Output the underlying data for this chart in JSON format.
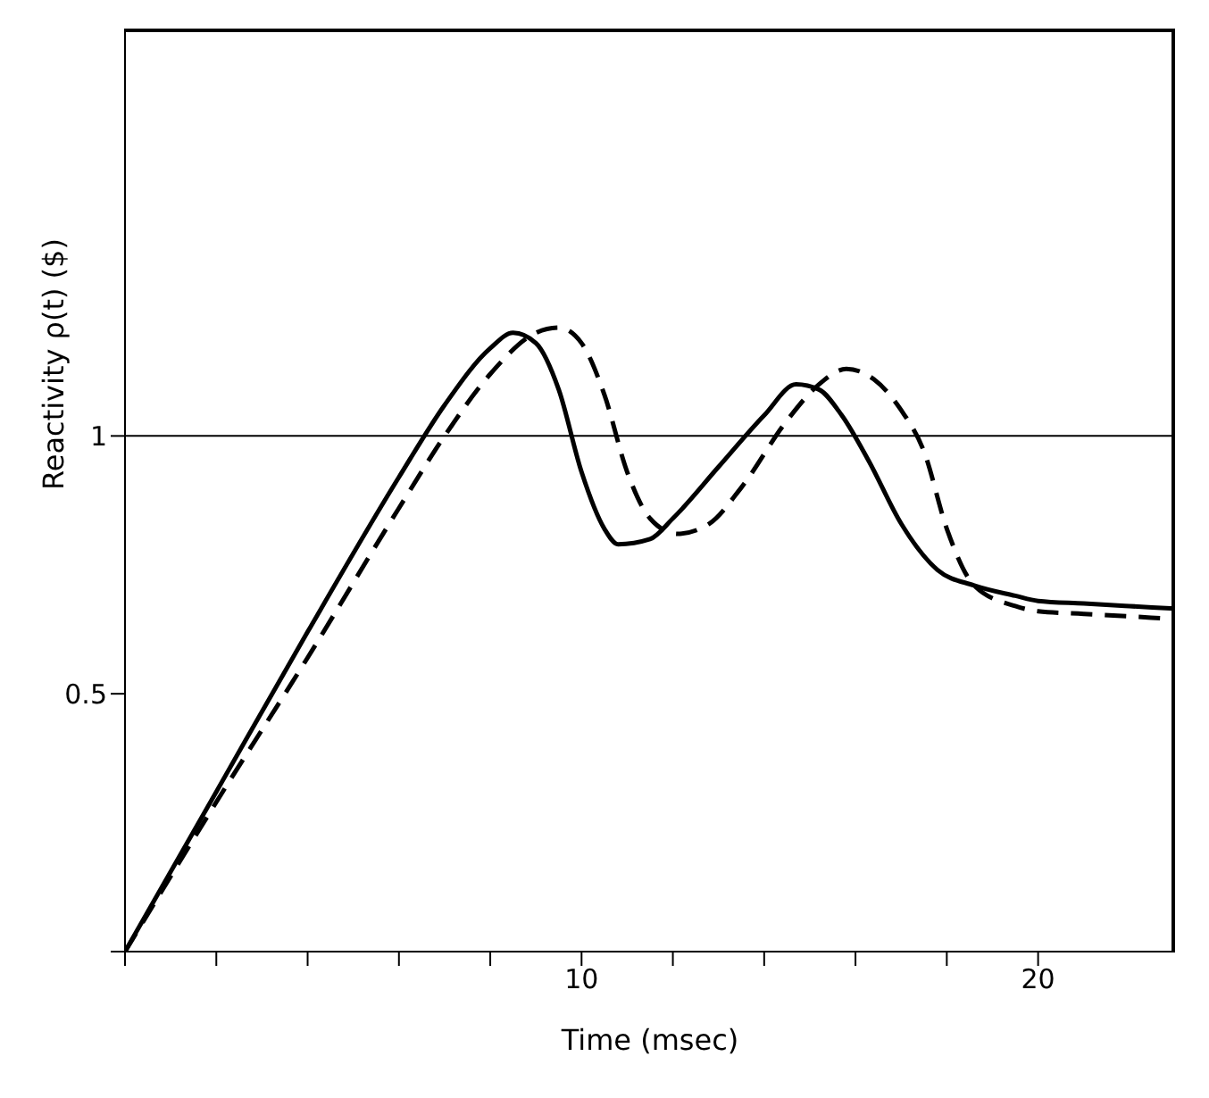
{
  "chart_data": {
    "type": "line",
    "xlabel": "Time    (msec)",
    "ylabel": "Reactivity ρ(t)  ($)",
    "xlim": [
      0,
      23
    ],
    "ylim": [
      0,
      1.79
    ],
    "xticks": [
      {
        "value": 0,
        "label": null
      },
      {
        "value": 2,
        "label": null
      },
      {
        "value": 4,
        "label": null
      },
      {
        "value": 6,
        "label": null
      },
      {
        "value": 8,
        "label": null
      },
      {
        "value": 10,
        "label": "10"
      },
      {
        "value": 12,
        "label": null
      },
      {
        "value": 14,
        "label": null
      },
      {
        "value": 16,
        "label": null
      },
      {
        "value": 18,
        "label": null
      },
      {
        "value": 20,
        "label": "20"
      }
    ],
    "yticks": [
      {
        "value": 0,
        "label": null
      },
      {
        "value": 0.5,
        "label": "0.5"
      },
      {
        "value": 1,
        "label": "1"
      }
    ],
    "ref_lines": [
      {
        "axis": "y",
        "value": 1,
        "color": "#000000"
      }
    ],
    "legend": false,
    "grid": false,
    "marker": "none",
    "series": [
      {
        "color": "#000000",
        "line_style": "solid",
        "x": [
          0,
          2,
          4,
          6,
          7,
          8,
          8.5,
          9,
          9.5,
          10,
          10.5,
          10.8,
          11.5,
          12,
          13,
          14,
          14.7,
          15.2,
          15.7,
          16.3,
          17,
          17.8,
          18.6,
          19.5,
          20,
          21,
          22,
          23
        ],
        "values": [
          0,
          0.31,
          0.62,
          0.92,
          1.06,
          1.17,
          1.2,
          1.18,
          1.09,
          0.93,
          0.82,
          0.79,
          0.8,
          0.84,
          0.94,
          1.04,
          1.1,
          1.09,
          1.04,
          0.95,
          0.83,
          0.74,
          0.71,
          0.69,
          0.68,
          0.675,
          0.67,
          0.665
        ]
      },
      {
        "color": "#000000",
        "line_style": "dashed",
        "x": [
          0,
          2,
          4,
          6,
          7,
          8,
          9,
          9.5,
          10,
          10.5,
          11,
          11.5,
          12.1,
          12.8,
          13.5,
          14.5,
          15.2,
          15.8,
          16.4,
          17,
          17.5,
          18,
          18.6,
          19.5,
          20,
          21,
          22,
          23
        ],
        "values": [
          0,
          0.29,
          0.57,
          0.86,
          1.0,
          1.12,
          1.2,
          1.21,
          1.18,
          1.08,
          0.93,
          0.84,
          0.81,
          0.83,
          0.9,
          1.03,
          1.1,
          1.13,
          1.11,
          1.05,
          0.97,
          0.82,
          0.71,
          0.67,
          0.66,
          0.655,
          0.65,
          0.645
        ]
      }
    ]
  }
}
